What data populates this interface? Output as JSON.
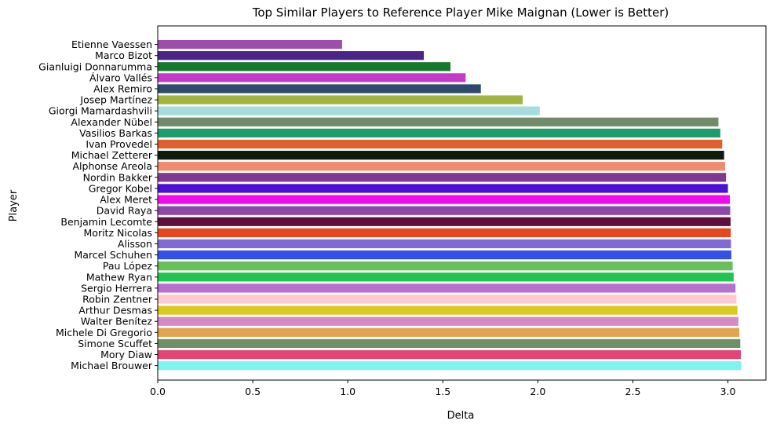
{
  "chart_data": {
    "type": "bar",
    "orientation": "horizontal",
    "title": "Top Similar Players to Reference Player Mike Maignan (Lower is Better)",
    "xlabel": "Delta",
    "ylabel": "Player",
    "xlim": [
      0,
      3.2
    ],
    "xticks": [
      "0.0",
      "0.5",
      "1.0",
      "1.5",
      "2.0",
      "2.5",
      "3.0"
    ],
    "grid": false,
    "categories": [
      "Etienne Vaessen",
      "Marco Bizot",
      "Gianluigi Donnarumma",
      "Álvaro Vallés",
      "Alex Remiro",
      "Josep Martínez",
      "Giorgi Mamardashvili",
      "Alexander Nübel",
      "Vasilios Barkas",
      "Ivan Provedel",
      "Michael Zetterer",
      "Alphonse Areola",
      "Nordin Bakker",
      "Gregor Kobel",
      "Alex Meret",
      "David Raya",
      "Benjamin Lecomte",
      "Moritz Nicolas",
      "Alisson",
      "Marcel Schuhen",
      "Pau López",
      "Mathew Ryan",
      "Sergio Herrera",
      "Robin Zentner",
      "Arthur Desmas",
      "Walter Benítez",
      "Michele Di Gregorio",
      "Simone Scuffet",
      "Mory Diaw",
      "Michael Brouwer"
    ],
    "values": [
      0.97,
      1.4,
      1.54,
      1.62,
      1.7,
      1.92,
      2.01,
      2.95,
      2.96,
      2.97,
      2.98,
      2.985,
      2.99,
      3.0,
      3.01,
      3.012,
      3.014,
      3.015,
      3.016,
      3.018,
      3.025,
      3.03,
      3.04,
      3.045,
      3.05,
      3.055,
      3.06,
      3.065,
      3.068,
      3.07
    ],
    "colors": [
      "#9b4eaa",
      "#4b2488",
      "#15782a",
      "#c33bc9",
      "#2d4a6b",
      "#a1b440",
      "#a6dcdb",
      "#728b6a",
      "#1d9d6b",
      "#e0602d",
      "#0c1d10",
      "#f08a6c",
      "#7d3a8f",
      "#4b12d6",
      "#f10af0",
      "#8c4aa8",
      "#5e0f3c",
      "#e4481c",
      "#7f6bd3",
      "#3450e6",
      "#67c05a",
      "#1fc550",
      "#b870ce",
      "#fdc8d0",
      "#dbc922",
      "#d58ac8",
      "#e1a451",
      "#6e9066",
      "#e24674",
      "#7ef4f0"
    ]
  }
}
